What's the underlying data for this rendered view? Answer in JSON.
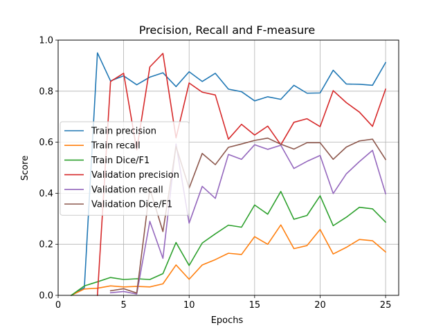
{
  "chart_data": {
    "type": "line",
    "title": "Precision, Recall and F-measure",
    "xlabel": "Epochs",
    "ylabel": "Score",
    "xlim": [
      0,
      26
    ],
    "ylim": [
      0,
      1.0
    ],
    "xticks": [
      0,
      5,
      10,
      15,
      20,
      25
    ],
    "yticks": [
      0.0,
      0.2,
      0.4,
      0.6,
      0.8,
      1.0
    ],
    "ytick_labels": [
      "0.0",
      "0.2",
      "0.4",
      "0.6",
      "0.8",
      "1.0"
    ],
    "grid": true,
    "legend_position": "center-left",
    "x": [
      1,
      2,
      3,
      4,
      5,
      6,
      7,
      8,
      9,
      10,
      11,
      12,
      13,
      14,
      15,
      16,
      17,
      18,
      19,
      20,
      21,
      22,
      23,
      24,
      25
    ],
    "series": [
      {
        "name": "Train precision",
        "color": "#1f77b4",
        "values": [
          0.0,
          0.03,
          0.95,
          0.84,
          0.86,
          0.825,
          0.855,
          0.872,
          0.818,
          0.876,
          0.838,
          0.87,
          0.808,
          0.798,
          0.762,
          0.778,
          0.768,
          0.823,
          0.792,
          0.793,
          0.882,
          0.828,
          0.827,
          0.823,
          0.912
        ]
      },
      {
        "name": "Train recall",
        "color": "#ff7f0e",
        "values": [
          0.0,
          0.025,
          0.028,
          0.037,
          0.033,
          0.035,
          0.033,
          0.045,
          0.119,
          0.063,
          0.119,
          0.14,
          0.165,
          0.16,
          0.23,
          0.2,
          0.276,
          0.183,
          0.195,
          0.258,
          0.162,
          0.188,
          0.219,
          0.214,
          0.17
        ]
      },
      {
        "name": "Train Dice/F1",
        "color": "#2ca02c",
        "values": [
          0.0,
          0.037,
          0.053,
          0.07,
          0.062,
          0.065,
          0.062,
          0.085,
          0.207,
          0.117,
          0.205,
          0.241,
          0.275,
          0.267,
          0.354,
          0.318,
          0.407,
          0.298,
          0.313,
          0.39,
          0.273,
          0.306,
          0.345,
          0.339,
          0.287
        ]
      },
      {
        "name": "Validation precision",
        "color": "#d62728",
        "values": [
          null,
          null,
          0.0,
          0.838,
          0.87,
          0.57,
          0.895,
          0.948,
          0.617,
          0.832,
          0.796,
          0.785,
          0.612,
          0.67,
          0.628,
          0.663,
          0.59,
          0.678,
          0.692,
          0.661,
          0.802,
          0.755,
          0.718,
          0.662,
          0.808
        ]
      },
      {
        "name": "Validation recall",
        "color": "#9467bd",
        "values": [
          null,
          null,
          null,
          0.01,
          0.015,
          0.005,
          0.29,
          0.145,
          0.593,
          0.283,
          0.427,
          0.38,
          0.552,
          0.533,
          0.59,
          0.572,
          0.588,
          0.497,
          0.525,
          0.548,
          0.399,
          0.476,
          0.524,
          0.568,
          0.398
        ]
      },
      {
        "name": "Validation Dice/F1",
        "color": "#8c564b",
        "values": [
          null,
          null,
          null,
          0.018,
          0.026,
          0.009,
          0.418,
          0.25,
          0.583,
          0.42,
          0.556,
          0.512,
          0.58,
          0.593,
          0.607,
          0.616,
          0.592,
          0.573,
          0.598,
          0.598,
          0.533,
          0.581,
          0.605,
          0.612,
          0.532
        ]
      }
    ]
  }
}
